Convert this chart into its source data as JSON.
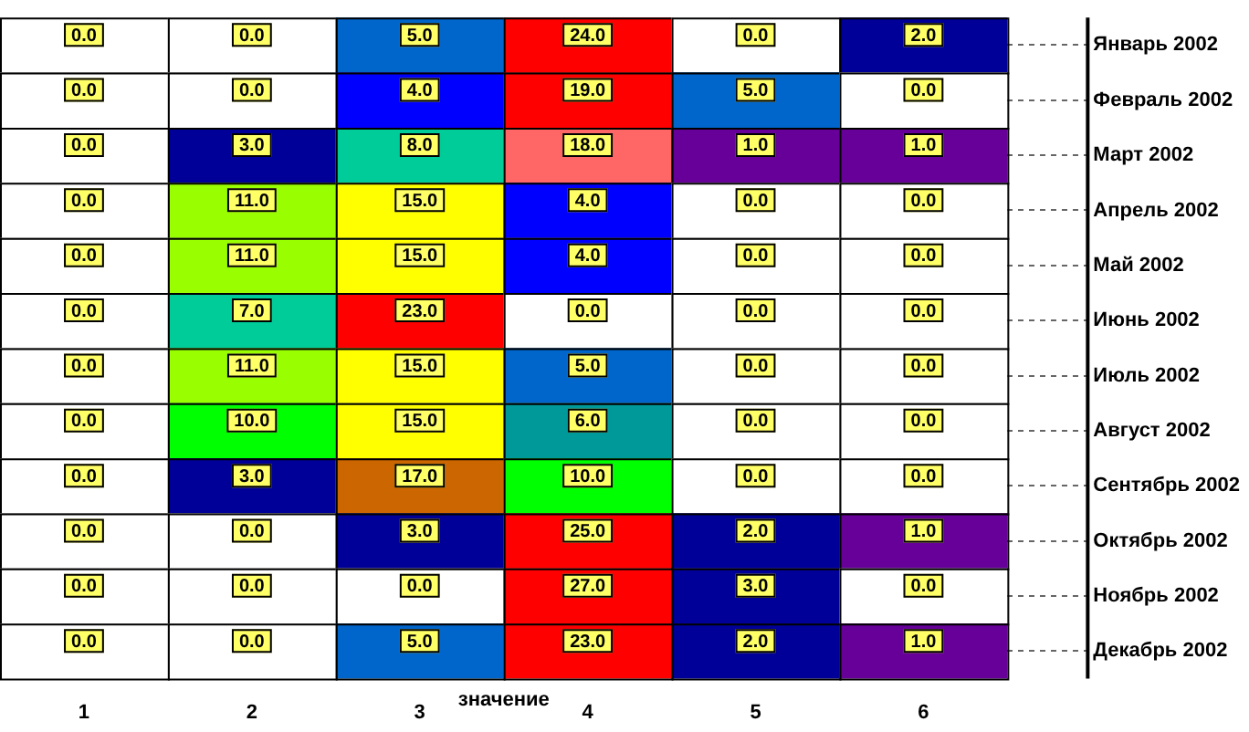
{
  "chart_data": {
    "type": "heatmap",
    "xlabel": "значение",
    "categories": [
      "1",
      "2",
      "3",
      "4",
      "5",
      "6"
    ],
    "y_categories": [
      "Январь 2002",
      "Февраль 2002",
      "Март 2002",
      "Апрель 2002",
      "Май 2002",
      "Июнь 2002",
      "Июль 2002",
      "Август 2002",
      "Сентябрь 2002",
      "Октябрь 2002",
      "Ноябрь 2002",
      "Декабрь 2002"
    ],
    "cells": [
      [
        0,
        0,
        5,
        24,
        0,
        2
      ],
      [
        0,
        0,
        4,
        19,
        5,
        0
      ],
      [
        0,
        3,
        8,
        18,
        1,
        1
      ],
      [
        0,
        11,
        15,
        4,
        0,
        0
      ],
      [
        0,
        11,
        15,
        4,
        0,
        0
      ],
      [
        0,
        7,
        23,
        0,
        0,
        0
      ],
      [
        0,
        11,
        15,
        5,
        0,
        0
      ],
      [
        0,
        10,
        15,
        6,
        0,
        0
      ],
      [
        0,
        3,
        17,
        10,
        0,
        0
      ],
      [
        0,
        0,
        3,
        25,
        2,
        1
      ],
      [
        0,
        0,
        0,
        27,
        3,
        0
      ],
      [
        0,
        0,
        5,
        23,
        2,
        1
      ]
    ],
    "cell_labels": [
      [
        "0.0",
        "0.0",
        "5.0",
        "24.0",
        "0.0",
        "2.0"
      ],
      [
        "0.0",
        "0.0",
        "4.0",
        "19.0",
        "5.0",
        "0.0"
      ],
      [
        "0.0",
        "3.0",
        "8.0",
        "18.0",
        "1.0",
        "1.0"
      ],
      [
        "0.0",
        "11.0",
        "15.0",
        "4.0",
        "0.0",
        "0.0"
      ],
      [
        "0.0",
        "11.0",
        "15.0",
        "4.0",
        "0.0",
        "0.0"
      ],
      [
        "0.0",
        "7.0",
        "23.0",
        "0.0",
        "0.0",
        "0.0"
      ],
      [
        "0.0",
        "11.0",
        "15.0",
        "5.0",
        "0.0",
        "0.0"
      ],
      [
        "0.0",
        "10.0",
        "15.0",
        "6.0",
        "0.0",
        "0.0"
      ],
      [
        "0.0",
        "3.0",
        "17.0",
        "10.0",
        "0.0",
        "0.0"
      ],
      [
        "0.0",
        "0.0",
        "3.0",
        "25.0",
        "2.0",
        "1.0"
      ],
      [
        "0.0",
        "0.0",
        "0.0",
        "27.0",
        "3.0",
        "0.0"
      ],
      [
        "0.0",
        "0.0",
        "5.0",
        "23.0",
        "2.0",
        "1.0"
      ]
    ]
  }
}
